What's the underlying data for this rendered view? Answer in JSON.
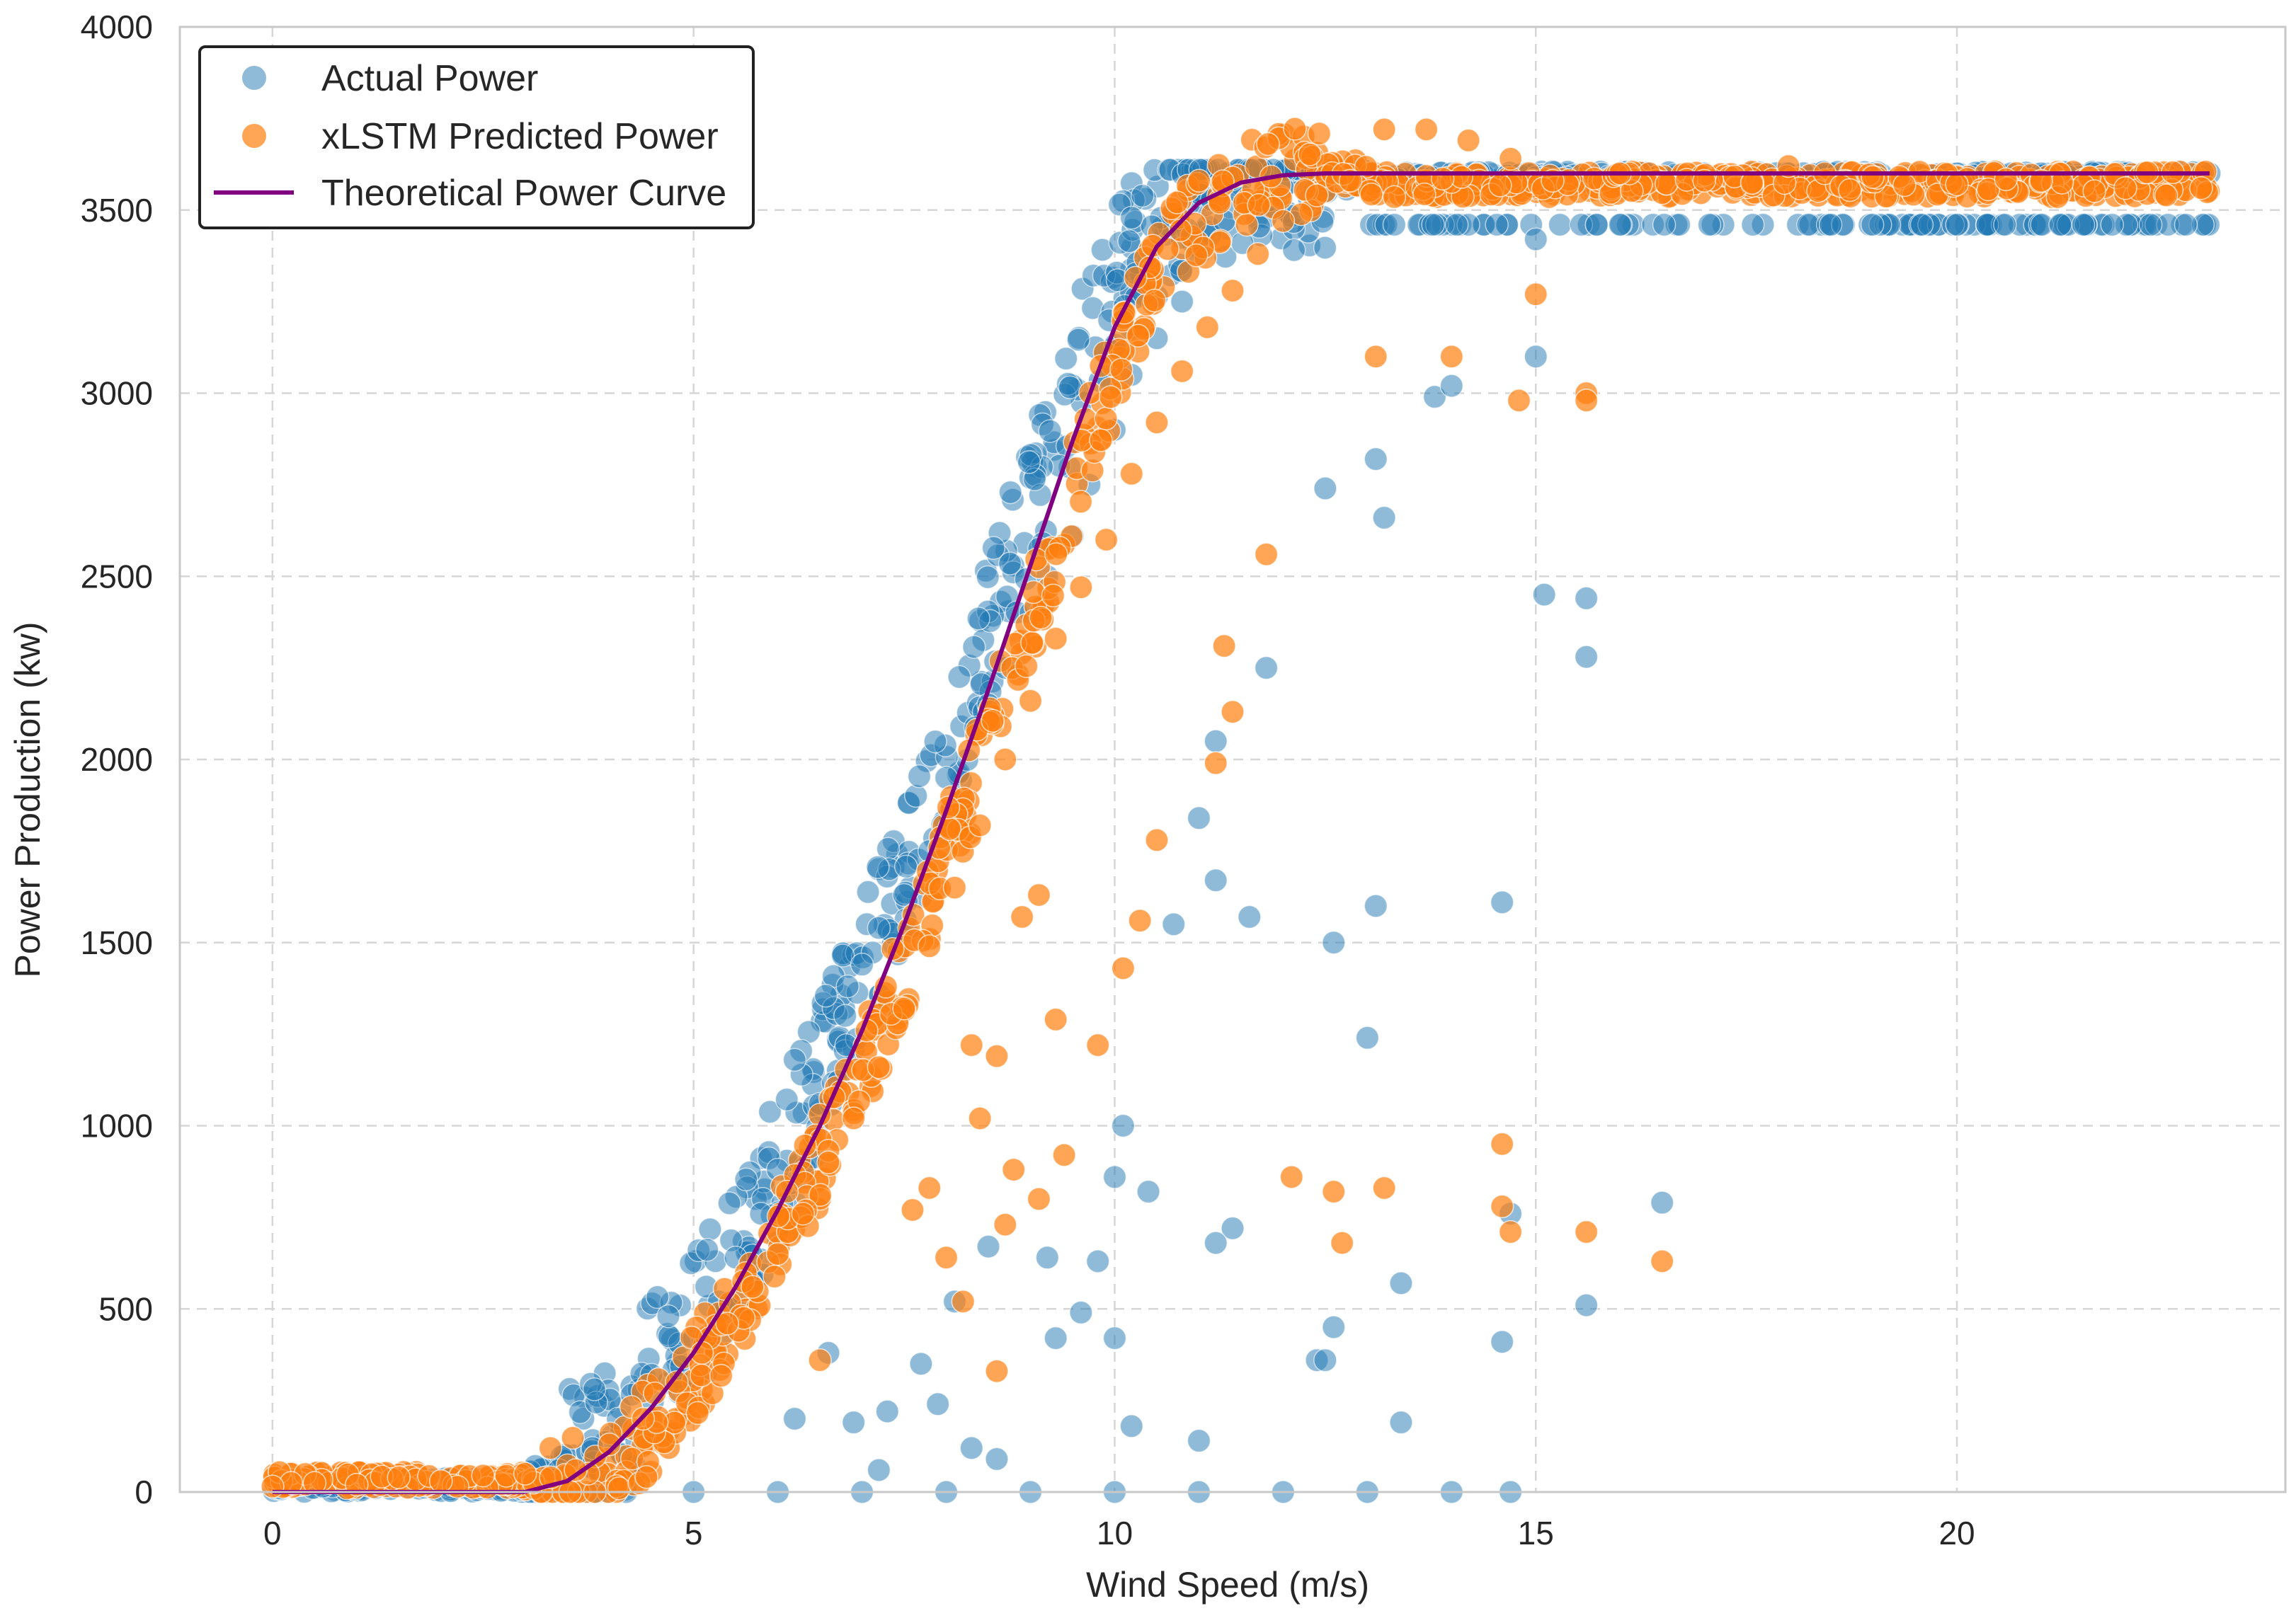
{
  "chart_data": {
    "type": "scatter",
    "title": "",
    "xlabel": "Wind Speed (m/s)",
    "ylabel": "Power Production (kw)",
    "xlim": [
      -1.1,
      23.9
    ],
    "ylim": [
      0,
      4000
    ],
    "x_ticks": [
      0,
      5,
      10,
      15,
      20
    ],
    "y_ticks": [
      0,
      500,
      1000,
      1500,
      2000,
      2500,
      3000,
      3500,
      4000
    ],
    "grid": true,
    "legend_position": "top-left",
    "series": [
      {
        "name": "Actual Power",
        "kind": "scatter",
        "color": "#1f77b4"
      },
      {
        "name": "xLSTM Predicted Power",
        "kind": "scatter",
        "color": "#ff7f0e"
      },
      {
        "name": "Theoretical Power Curve",
        "kind": "line",
        "color": "#800080"
      }
    ],
    "theoretical_curve": {
      "x": [
        3.0,
        3.5,
        4.0,
        4.5,
        5.0,
        5.5,
        6.0,
        6.5,
        7.0,
        7.5,
        8.0,
        8.5,
        9.0,
        9.5,
        10.0,
        10.5,
        11.0,
        11.5,
        12.0,
        12.5,
        13.0,
        15.0,
        20.0,
        23.0
      ],
      "y": [
        0,
        30,
        110,
        230,
        380,
        560,
        770,
        1000,
        1260,
        1550,
        1860,
        2190,
        2530,
        2870,
        3180,
        3400,
        3520,
        3575,
        3595,
        3600,
        3600,
        3600,
        3600,
        3600
      ]
    },
    "actual_power_points": [
      [
        0.1,
        10
      ],
      [
        0.6,
        15
      ],
      [
        1.2,
        20
      ],
      [
        1.8,
        12
      ],
      [
        2.4,
        25
      ],
      [
        2.9,
        30
      ],
      [
        3.4,
        60
      ],
      [
        3.8,
        120
      ],
      [
        4.1,
        200
      ],
      [
        4.5,
        320
      ],
      [
        4.7,
        480
      ],
      [
        5.0,
        420
      ],
      [
        5.3,
        520
      ],
      [
        5.5,
        640
      ],
      [
        5.8,
        760
      ],
      [
        6.0,
        880
      ],
      [
        6.2,
        1180
      ],
      [
        6.5,
        1060
      ],
      [
        6.8,
        1300
      ],
      [
        7.0,
        1440
      ],
      [
        7.2,
        1540
      ],
      [
        7.5,
        1630
      ],
      [
        7.8,
        1750
      ],
      [
        8.0,
        1950
      ],
      [
        8.2,
        1860
      ],
      [
        8.5,
        2150
      ],
      [
        8.7,
        2250
      ],
      [
        9.0,
        2400
      ],
      [
        9.2,
        2500
      ],
      [
        9.5,
        2610
      ],
      [
        9.7,
        2750
      ],
      [
        10.0,
        2900
      ],
      [
        10.2,
        3050
      ],
      [
        10.5,
        3150
      ],
      [
        10.8,
        3250
      ],
      [
        11.0,
        3380
      ],
      [
        11.3,
        3470
      ],
      [
        11.6,
        3520
      ],
      [
        12.0,
        3560
      ],
      [
        12.4,
        3590
      ],
      [
        13.0,
        3600
      ],
      [
        14.0,
        3600
      ],
      [
        15.0,
        3590
      ],
      [
        16.0,
        3600
      ],
      [
        17.0,
        3600
      ],
      [
        18.0,
        3600
      ],
      [
        19.0,
        3600
      ],
      [
        20.0,
        3600
      ],
      [
        21.0,
        3600
      ],
      [
        22.0,
        3600
      ],
      [
        23.0,
        3600
      ],
      [
        16.0,
        3460
      ],
      [
        18.5,
        3460
      ],
      [
        20.0,
        3460
      ],
      [
        21.5,
        3460
      ],
      [
        22.3,
        3460
      ],
      [
        15.0,
        3420
      ],
      [
        12.5,
        2740
      ],
      [
        13.1,
        2820
      ],
      [
        13.2,
        2660
      ],
      [
        13.8,
        2990
      ],
      [
        14.0,
        3020
      ],
      [
        15.0,
        3100
      ],
      [
        15.1,
        2450
      ],
      [
        15.6,
        2440
      ],
      [
        15.6,
        2280
      ],
      [
        11.8,
        2250
      ],
      [
        11.2,
        2050
      ],
      [
        11.0,
        1840
      ],
      [
        11.2,
        1670
      ],
      [
        11.6,
        1570
      ],
      [
        10.7,
        1550
      ],
      [
        12.6,
        1500
      ],
      [
        13.1,
        1600
      ],
      [
        14.6,
        1610
      ],
      [
        13.0,
        1240
      ],
      [
        10.1,
        1000
      ],
      [
        10.0,
        860
      ],
      [
        10.4,
        820
      ],
      [
        11.4,
        720
      ],
      [
        11.2,
        680
      ],
      [
        13.4,
        570
      ],
      [
        12.6,
        450
      ],
      [
        12.4,
        360
      ],
      [
        12.5,
        360
      ],
      [
        14.6,
        410
      ],
      [
        15.6,
        510
      ],
      [
        16.5,
        790
      ],
      [
        14.7,
        760
      ],
      [
        9.6,
        490
      ],
      [
        9.3,
        420
      ],
      [
        10.0,
        420
      ],
      [
        9.8,
        630
      ],
      [
        9.2,
        640
      ],
      [
        8.5,
        670
      ],
      [
        8.1,
        520
      ],
      [
        7.9,
        240
      ],
      [
        8.3,
        120
      ],
      [
        8.6,
        90
      ],
      [
        7.7,
        350
      ],
      [
        7.3,
        220
      ],
      [
        6.9,
        190
      ],
      [
        7.2,
        60
      ],
      [
        6.6,
        380
      ],
      [
        6.2,
        200
      ],
      [
        10.2,
        180
      ],
      [
        11.0,
        140
      ],
      [
        13.4,
        190
      ],
      [
        4.2,
        0
      ],
      [
        5.0,
        0
      ],
      [
        6.0,
        0
      ],
      [
        7.0,
        0
      ],
      [
        8.0,
        0
      ],
      [
        9.0,
        0
      ],
      [
        10.0,
        0
      ],
      [
        11.0,
        0
      ],
      [
        12.0,
        0
      ],
      [
        13.0,
        0
      ],
      [
        14.0,
        0
      ],
      [
        14.7,
        0
      ]
    ],
    "predicted_power_points": [
      [
        0.0,
        15
      ],
      [
        0.5,
        25
      ],
      [
        1.0,
        20
      ],
      [
        1.5,
        40
      ],
      [
        2.0,
        30
      ],
      [
        2.5,
        45
      ],
      [
        3.0,
        50
      ],
      [
        3.3,
        120
      ],
      [
        3.6,
        60
      ],
      [
        4.0,
        130
      ],
      [
        4.4,
        200
      ],
      [
        4.8,
        300
      ],
      [
        5.1,
        380
      ],
      [
        5.4,
        460
      ],
      [
        5.7,
        560
      ],
      [
        6.0,
        650
      ],
      [
        6.3,
        760
      ],
      [
        6.6,
        900
      ],
      [
        6.9,
        1020
      ],
      [
        7.2,
        1160
      ],
      [
        7.5,
        1320
      ],
      [
        7.8,
        1490
      ],
      [
        8.1,
        1650
      ],
      [
        8.4,
        1820
      ],
      [
        8.7,
        2000
      ],
      [
        9.0,
        2160
      ],
      [
        9.3,
        2330
      ],
      [
        9.6,
        2470
      ],
      [
        9.9,
        2600
      ],
      [
        10.2,
        2780
      ],
      [
        10.5,
        2920
      ],
      [
        10.8,
        3060
      ],
      [
        11.1,
        3180
      ],
      [
        11.4,
        3280
      ],
      [
        11.7,
        3380
      ],
      [
        12.0,
        3470
      ],
      [
        12.4,
        3540
      ],
      [
        12.8,
        3580
      ],
      [
        13.2,
        3720
      ],
      [
        13.7,
        3720
      ],
      [
        14.2,
        3690
      ],
      [
        14.7,
        3640
      ],
      [
        15.2,
        3580
      ],
      [
        16.0,
        3600
      ],
      [
        17.0,
        3580
      ],
      [
        18.0,
        3620
      ],
      [
        19.0,
        3590
      ],
      [
        20.0,
        3570
      ],
      [
        21.0,
        3580
      ],
      [
        22.0,
        3560
      ],
      [
        22.9,
        3560
      ],
      [
        15.6,
        3000
      ],
      [
        15.6,
        2980
      ],
      [
        14.8,
        2980
      ],
      [
        14.0,
        3100
      ],
      [
        13.1,
        3100
      ],
      [
        15.0,
        3270
      ],
      [
        11.8,
        2560
      ],
      [
        11.3,
        2310
      ],
      [
        11.4,
        2130
      ],
      [
        11.2,
        1990
      ],
      [
        10.5,
        1780
      ],
      [
        10.1,
        1430
      ],
      [
        10.3,
        1560
      ],
      [
        9.1,
        1630
      ],
      [
        8.9,
        1570
      ],
      [
        9.3,
        1290
      ],
      [
        9.8,
        1220
      ],
      [
        8.3,
        1220
      ],
      [
        8.6,
        1190
      ],
      [
        8.4,
        1020
      ],
      [
        8.8,
        880
      ],
      [
        9.4,
        920
      ],
      [
        9.1,
        800
      ],
      [
        8.7,
        730
      ],
      [
        7.8,
        830
      ],
      [
        8.0,
        640
      ],
      [
        8.2,
        520
      ],
      [
        7.6,
        770
      ],
      [
        8.6,
        330
      ],
      [
        12.1,
        860
      ],
      [
        12.6,
        820
      ],
      [
        12.7,
        680
      ],
      [
        13.2,
        830
      ],
      [
        14.6,
        950
      ],
      [
        14.6,
        780
      ],
      [
        14.7,
        710
      ],
      [
        15.6,
        710
      ],
      [
        16.5,
        630
      ],
      [
        6.5,
        360
      ]
    ]
  },
  "legend": {
    "items": [
      {
        "label": "Actual Power",
        "color": "#1f77b4"
      },
      {
        "label": "xLSTM Predicted Power",
        "color": "#ff7f0e"
      },
      {
        "label": "Theoretical Power Curve",
        "color": "#800080"
      }
    ]
  }
}
